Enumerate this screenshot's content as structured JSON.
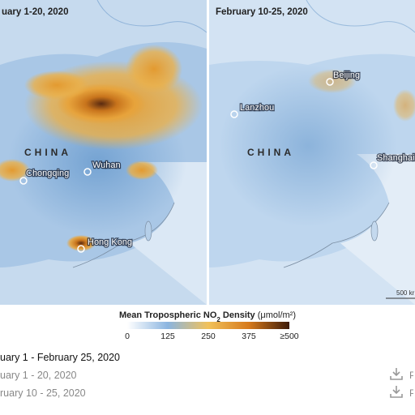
{
  "left_map": {
    "date": "uary 1-20, 2020",
    "country": "CHINA",
    "cities": [
      "Chongqing",
      "Wuhan",
      "Hong Kong"
    ]
  },
  "right_map": {
    "date": "February 10-25, 2020",
    "country": "CHINA",
    "cities": [
      "Lanzhou",
      "Beijing",
      "Shanghai"
    ],
    "scale": "500 kr"
  },
  "legend": {
    "title": "Mean Tropospheric NO",
    "title_subscript": "2",
    "title_rest": " Density ",
    "unit": "(μmol/m²)",
    "ticks": [
      "0",
      "125",
      "250",
      "375",
      "≥500"
    ]
  },
  "downloads": [
    "uary 1 - February 25, 2020",
    "uary 1 - 20, 2020",
    "ruary 10 - 25, 2020"
  ],
  "download_labels": [
    "P",
    "P"
  ]
}
